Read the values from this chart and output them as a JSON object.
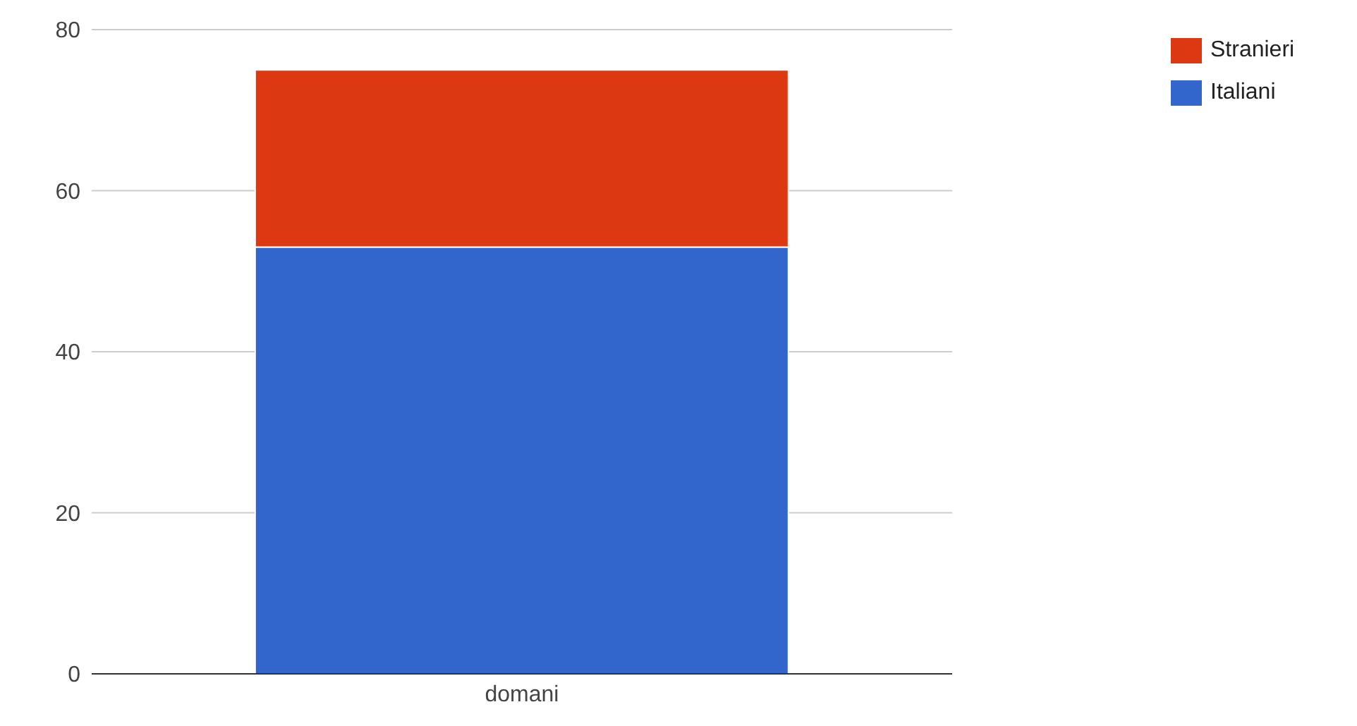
{
  "chart_data": {
    "type": "bar",
    "stacked": true,
    "categories": [
      "domani"
    ],
    "series": [
      {
        "name": "Italiani",
        "color": "#3366cc",
        "values": [
          53
        ]
      },
      {
        "name": "Stranieri",
        "color": "#dc3912",
        "values": [
          22
        ]
      }
    ],
    "ylim": [
      0,
      80
    ],
    "yticks": [
      0,
      20,
      40,
      60,
      80
    ],
    "grid": "y",
    "legend": "top right"
  }
}
